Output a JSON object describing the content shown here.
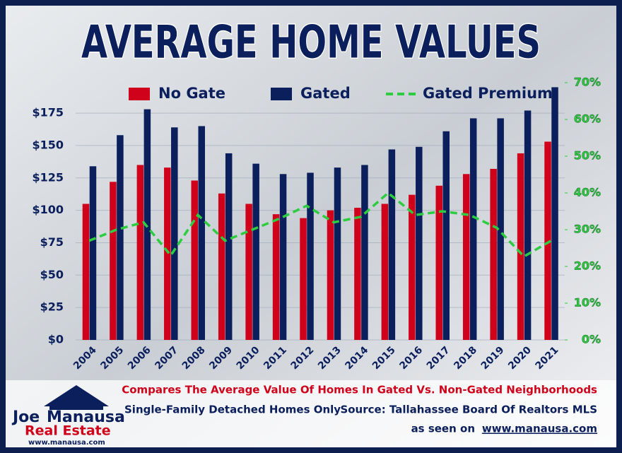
{
  "chart_data": {
    "type": "bar",
    "title": "AVERAGE HOME VALUES",
    "categories": [
      "2004",
      "2005",
      "2006",
      "2007",
      "2008",
      "2009",
      "2010",
      "2011",
      "2012",
      "2013",
      "2014",
      "2015",
      "2016",
      "2017",
      "2018",
      "2019",
      "2020",
      "2021"
    ],
    "series": [
      {
        "name": "No Gate",
        "color": "#d0021b",
        "type": "bar",
        "values": [
          105,
          122,
          135,
          133,
          123,
          113,
          105,
          97,
          94,
          100,
          102,
          105,
          112,
          119,
          128,
          132,
          144,
          153
        ]
      },
      {
        "name": "Gated",
        "color": "#0b1f5c",
        "type": "bar",
        "values": [
          134,
          158,
          178,
          164,
          165,
          144,
          136,
          128,
          129,
          133,
          135,
          147,
          149,
          161,
          171,
          171,
          177,
          195
        ]
      },
      {
        "name": "Gated Premium",
        "color": "#2ecc40",
        "type": "line",
        "axis": "y2",
        "values": [
          27,
          30,
          32,
          23,
          34,
          27,
          30,
          33,
          36.5,
          32,
          33.5,
          40,
          34,
          35,
          34,
          30.5,
          22.7,
          27
        ]
      }
    ],
    "ylim": [
      0,
      198.5
    ],
    "yticks": [
      {
        "value": 0,
        "label": "$0"
      },
      {
        "value": 25,
        "label": "$25"
      },
      {
        "value": 50,
        "label": "$50"
      },
      {
        "value": 75,
        "label": "$75"
      },
      {
        "value": 100,
        "label": "$100"
      },
      {
        "value": 125,
        "label": "$125"
      },
      {
        "value": 150,
        "label": "$150"
      },
      {
        "value": 175,
        "label": "$175"
      }
    ],
    "y2lim": [
      0,
      70
    ],
    "y2ticks": [
      {
        "value": 0,
        "label": "0%"
      },
      {
        "value": 10,
        "label": "10%"
      },
      {
        "value": 20,
        "label": "20%"
      },
      {
        "value": 30,
        "label": "30%"
      },
      {
        "value": 40,
        "label": "40%"
      },
      {
        "value": 50,
        "label": "50%"
      },
      {
        "value": 60,
        "label": "60%"
      },
      {
        "value": 70,
        "label": "70%"
      }
    ],
    "grid": true
  },
  "footer": {
    "subtitle": "Compares The Average Value Of Homes In Gated Vs. Non-Gated Neighborhoods",
    "note": "Single-Family Detached Homes Only",
    "source": "Source: Tallahassee Board Of Realtors MLS",
    "seen_on": "as seen on",
    "url": "www.manausa.com"
  },
  "logo": {
    "name_first": "Joe",
    "name_last": "Manausa",
    "tagline": "Real Estate",
    "url": "www.manausa.com"
  }
}
